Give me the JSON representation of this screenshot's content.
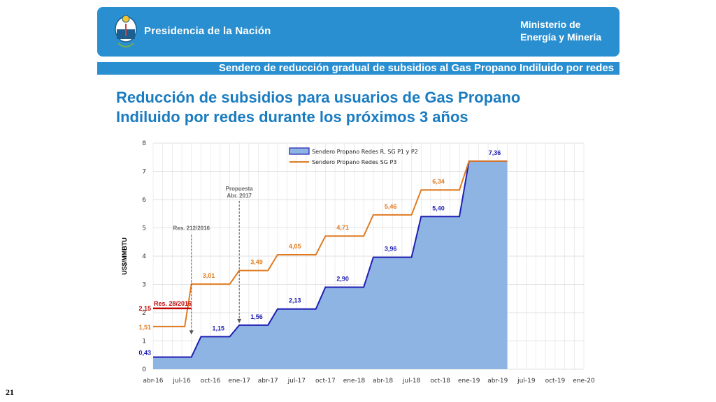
{
  "header": {
    "presidencia": "Presidencia de la Nación",
    "ministerio_line1": "Ministerio de",
    "ministerio_line2": "Energía y Minería",
    "subtitle": "Sendero de reducción gradual de subsidios al Gas Propano Indiluido por redes"
  },
  "slide": {
    "title_line1": "Reducción de subsidios para usuarios de Gas Propano",
    "title_line2": "Indiluido por redes durante los próximos 3 años",
    "page_number": "21"
  },
  "colors": {
    "header": "#2a8fd0",
    "title": "#1a7cc1",
    "blue_line": "#1f1fb4",
    "blue_fill": "#8eb4e3",
    "orange": "#e07b22",
    "red": "#c00000"
  },
  "chart_data": {
    "type": "area",
    "ylabel": "US$/MMBTU",
    "ylim": [
      0,
      8
    ],
    "y_ticks": [
      "0",
      "1",
      "2",
      "3",
      "4",
      "5",
      "6",
      "7",
      "8"
    ],
    "x_ticks": [
      "abr-16",
      "jul-16",
      "oct-16",
      "ene-17",
      "abr-17",
      "jul-17",
      "oct-17",
      "ene-18",
      "abr-18",
      "jul-18",
      "oct-18",
      "ene-19",
      "abr-19",
      "jul-19",
      "oct-19",
      "ene-20"
    ],
    "series": [
      {
        "name": "Sendero Propano Redes R, SG P1 y P2",
        "style": "area",
        "points": [
          [
            0,
            0.43
          ],
          [
            4,
            0.43
          ],
          [
            5,
            1.15
          ],
          [
            8,
            1.15
          ],
          [
            9,
            1.56
          ],
          [
            12,
            1.56
          ],
          [
            13,
            2.13
          ],
          [
            17,
            2.13
          ],
          [
            18,
            2.9
          ],
          [
            22,
            2.9
          ],
          [
            23,
            3.96
          ],
          [
            27,
            3.96
          ],
          [
            28,
            5.4
          ],
          [
            32,
            5.4
          ],
          [
            33,
            7.36
          ],
          [
            37,
            7.36
          ]
        ],
        "labels": [
          {
            "text": "0,43",
            "x": 0,
            "y": 0.43
          },
          {
            "text": "1,15",
            "x": 5,
            "y": 1.15
          },
          {
            "text": "1,56",
            "x": 9,
            "y": 1.56
          },
          {
            "text": "2,13",
            "x": 13,
            "y": 2.13
          },
          {
            "text": "2,90",
            "x": 18,
            "y": 2.9
          },
          {
            "text": "3,96",
            "x": 23,
            "y": 3.96
          },
          {
            "text": "5,40",
            "x": 28,
            "y": 5.4
          },
          {
            "text": "7,36",
            "x": 33,
            "y": 7.36
          }
        ]
      },
      {
        "name": "Sendero Propano Redes SG P3",
        "style": "line",
        "points": [
          [
            0,
            1.51
          ],
          [
            3.3,
            1.51
          ],
          [
            4,
            3.01
          ],
          [
            8,
            3.01
          ],
          [
            9,
            3.49
          ],
          [
            12,
            3.49
          ],
          [
            13,
            4.05
          ],
          [
            17,
            4.05
          ],
          [
            18,
            4.71
          ],
          [
            22,
            4.71
          ],
          [
            23,
            5.46
          ],
          [
            27,
            5.46
          ],
          [
            28,
            6.34
          ],
          [
            32,
            6.34
          ],
          [
            33,
            7.36
          ],
          [
            37,
            7.36
          ]
        ],
        "labels": [
          {
            "text": "1,51",
            "x": 0,
            "y": 1.51
          },
          {
            "text": "3,01",
            "x": 4,
            "y": 3.01
          },
          {
            "text": "3,49",
            "x": 9,
            "y": 3.49
          },
          {
            "text": "4,05",
            "x": 13,
            "y": 4.05
          },
          {
            "text": "4,71",
            "x": 18,
            "y": 4.71
          },
          {
            "text": "5,46",
            "x": 23,
            "y": 5.46
          },
          {
            "text": "6,34",
            "x": 28,
            "y": 6.34
          }
        ]
      },
      {
        "name": "Res. 28/2016",
        "style": "line",
        "points": [
          [
            0,
            2.15
          ],
          [
            4,
            2.15
          ]
        ],
        "labels": [
          {
            "text": "2,15",
            "x": 0,
            "y": 2.15
          }
        ]
      }
    ],
    "annotations": [
      {
        "text": "Res. 28/2016",
        "x": 0,
        "y": 2.15
      },
      {
        "text": "Res. 212/2016",
        "x": 4,
        "arrow_from": 5.0,
        "arrow_to": 1.15
      },
      {
        "text": "Propuesta",
        "text2": "Abr. 2017",
        "x": 9,
        "arrow_from": 6.1,
        "arrow_to": 1.56
      }
    ]
  }
}
